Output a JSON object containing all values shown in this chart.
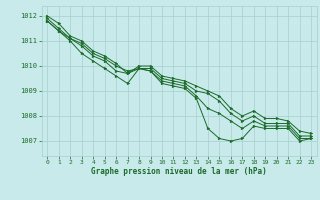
{
  "background_color": "#c8eaea",
  "grid_color": "#a8cece",
  "line_color": "#1a6b2a",
  "marker_color": "#1a6b2a",
  "xlim": [
    -0.5,
    23.5
  ],
  "ylim": [
    1006.4,
    1012.4
  ],
  "yticks": [
    1007,
    1008,
    1009,
    1010,
    1011,
    1012
  ],
  "xticks": [
    0,
    1,
    2,
    3,
    4,
    5,
    6,
    7,
    8,
    9,
    10,
    11,
    12,
    13,
    14,
    15,
    16,
    17,
    18,
    19,
    20,
    21,
    22,
    23
  ],
  "xlabel": "Graphe pression niveau de la mer (hPa)",
  "series": [
    [
      1011.8,
      1011.4,
      1011.0,
      1010.5,
      1010.2,
      1009.9,
      1009.6,
      1009.3,
      1009.9,
      1009.8,
      1009.3,
      1009.2,
      1009.1,
      1008.7,
      1007.5,
      1007.1,
      1007.0,
      1007.1,
      1007.6,
      1007.5,
      1007.5,
      1007.5,
      1007.0,
      1007.1
    ],
    [
      1011.8,
      1011.4,
      1011.1,
      1010.8,
      1010.4,
      1010.2,
      1009.8,
      1009.7,
      1009.9,
      1009.8,
      1009.4,
      1009.3,
      1009.2,
      1008.8,
      1008.3,
      1008.1,
      1007.8,
      1007.5,
      1007.8,
      1007.6,
      1007.6,
      1007.6,
      1007.1,
      1007.1
    ],
    [
      1011.9,
      1011.5,
      1011.1,
      1010.9,
      1010.5,
      1010.3,
      1010.0,
      1009.8,
      1009.9,
      1009.9,
      1009.5,
      1009.4,
      1009.3,
      1009.0,
      1008.9,
      1008.6,
      1008.1,
      1007.8,
      1008.0,
      1007.7,
      1007.7,
      1007.7,
      1007.2,
      1007.2
    ],
    [
      1012.0,
      1011.7,
      1011.2,
      1011.0,
      1010.6,
      1010.4,
      1010.1,
      1009.7,
      1010.0,
      1010.0,
      1009.6,
      1009.5,
      1009.4,
      1009.2,
      1009.0,
      1008.8,
      1008.3,
      1008.0,
      1008.2,
      1007.9,
      1007.9,
      1007.8,
      1007.4,
      1007.3
    ]
  ]
}
